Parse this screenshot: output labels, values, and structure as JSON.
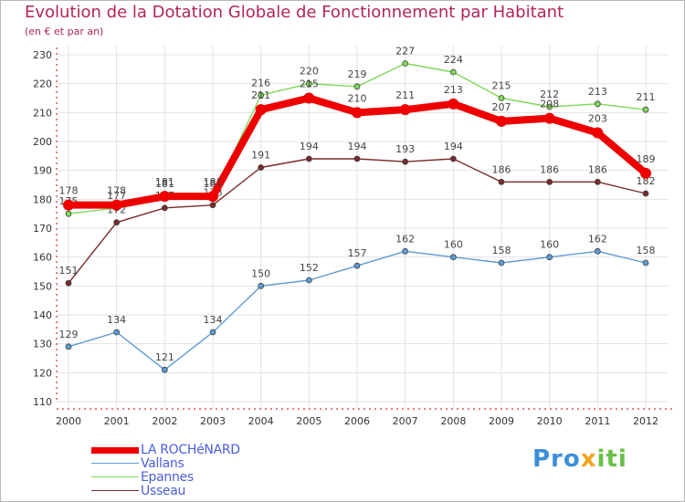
{
  "chart_data": {
    "type": "line",
    "title": "Evolution de la Dotation Globale de Fonctionnement par Habitant",
    "subtitle": "(en € et par an)",
    "xlabel": "",
    "ylabel": "",
    "ylim": [
      110,
      230
    ],
    "yticks": [
      110,
      120,
      130,
      140,
      150,
      160,
      170,
      180,
      190,
      200,
      210,
      220,
      230
    ],
    "x": [
      "2000",
      "2001",
      "2002",
      "2003",
      "2004",
      "2005",
      "2006",
      "2007",
      "2008",
      "2009",
      "2010",
      "2011",
      "2012"
    ],
    "grid": true,
    "legend": "bottom-left",
    "series": [
      {
        "name": "Vallans",
        "color": "#5b9bd5",
        "values": [
          129,
          134,
          121,
          134,
          150,
          152,
          157,
          162,
          160,
          158,
          160,
          162,
          158
        ]
      },
      {
        "name": "Epannes",
        "color": "#7ed957",
        "values": [
          175,
          177,
          181,
          181,
          216,
          220,
          219,
          227,
          224,
          215,
          212,
          213,
          211
        ]
      },
      {
        "name": "Usseau",
        "color": "#7a2a2a",
        "values": [
          151,
          172,
          177,
          178,
          191,
          194,
          194,
          193,
          194,
          186,
          186,
          186,
          182
        ]
      },
      {
        "name": "LA ROCHéNARD",
        "color": "#ee0000",
        "values": [
          178,
          178,
          181,
          181,
          211,
          215,
          210,
          211,
          213,
          207,
          208,
          203,
          189
        ]
      }
    ],
    "legend_order": [
      "LA ROCHéNARD",
      "Vallans",
      "Epannes",
      "Usseau"
    ]
  },
  "brand": {
    "p1": "Pro",
    "p2": "x",
    "p3": "iti"
  }
}
